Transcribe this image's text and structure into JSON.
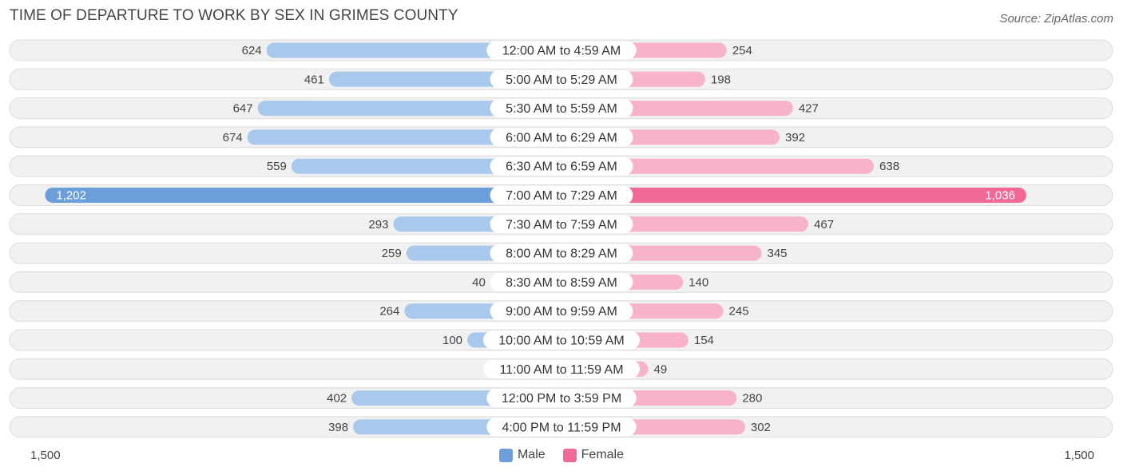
{
  "header": {
    "title": "TIME OF DEPARTURE TO WORK BY SEX IN GRIMES COUNTY",
    "source": "Source: ZipAtlas.com"
  },
  "axis": {
    "left_label": "1,500",
    "right_label": "1,500"
  },
  "legend": {
    "male_label": "Male",
    "female_label": "Female"
  },
  "colors": {
    "male": "#6a9fdc",
    "male_light": "#a8c8ec",
    "female": "#f06a95",
    "female_light": "#f7b3c8",
    "row_bg": "#f1f1f1",
    "row_border": "#dcdcdc"
  },
  "chart_data": {
    "type": "bar",
    "orientation": "horizontal-diverging",
    "title": "TIME OF DEPARTURE TO WORK BY SEX IN GRIMES COUNTY",
    "xlim": [
      -1500,
      1500
    ],
    "categories": [
      "12:00 AM to 4:59 AM",
      "5:00 AM to 5:29 AM",
      "5:30 AM to 5:59 AM",
      "6:00 AM to 6:29 AM",
      "6:30 AM to 6:59 AM",
      "7:00 AM to 7:29 AM",
      "7:30 AM to 7:59 AM",
      "8:00 AM to 8:29 AM",
      "8:30 AM to 8:59 AM",
      "9:00 AM to 9:59 AM",
      "10:00 AM to 10:59 AM",
      "11:00 AM to 11:59 AM",
      "12:00 PM to 3:59 PM",
      "4:00 PM to 11:59 PM"
    ],
    "series": [
      {
        "name": "Male",
        "values": [
          624,
          461,
          647,
          674,
          559,
          1202,
          293,
          259,
          40,
          264,
          100,
          0,
          402,
          398
        ],
        "labels": [
          "624",
          "461",
          "647",
          "674",
          "559",
          "1,202",
          "293",
          "259",
          "40",
          "264",
          "100",
          "0",
          "402",
          "398"
        ]
      },
      {
        "name": "Female",
        "values": [
          254,
          198,
          427,
          392,
          638,
          1036,
          467,
          345,
          140,
          245,
          154,
          49,
          280,
          302
        ],
        "labels": [
          "254",
          "198",
          "427",
          "392",
          "638",
          "1,036",
          "467",
          "345",
          "140",
          "245",
          "154",
          "49",
          "280",
          "302"
        ]
      }
    ],
    "legend_position": "bottom-center"
  }
}
